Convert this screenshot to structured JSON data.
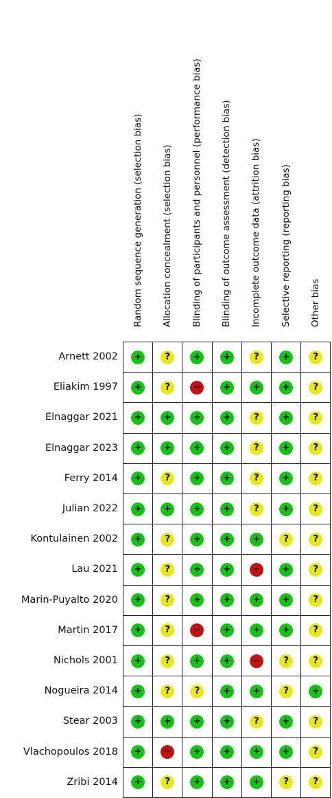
{
  "chart_data": {
    "type": "table",
    "title": "",
    "domains": [
      "Random sequence generation (selection bias)",
      "Allocation concealment (selection bias)",
      "Blinding of participants and personnel (performance bias)",
      "Blinding of outcome assessment (detection bias)",
      "Incomplete outcome data (attrition bias)",
      "Selective reporting (reporting bias)",
      "Other bias"
    ],
    "studies": [
      "Arnett 2002",
      "Eliakim 1997",
      "Elnaggar 2021",
      "Elnaggar 2023",
      "Ferry 2014",
      "Julian 2022",
      "Kontulainen 2002",
      "Lau 2021",
      "Marin-Puyalto 2020",
      "Martin 2017",
      "Nichols 2001",
      "Nogueira 2014",
      "Stear 2003",
      "Vlachopoulos 2018",
      "Zribi 2014"
    ],
    "symbols": {
      "low": "+",
      "unclear": "?",
      "high": "−"
    },
    "colors": {
      "low": "#15c315",
      "unclear": "#e8e818",
      "high": "#c41212"
    },
    "judgements": [
      [
        "low",
        "unclear",
        "low",
        "low",
        "unclear",
        "low",
        "unclear"
      ],
      [
        "low",
        "unclear",
        "high",
        "low",
        "low",
        "low",
        "unclear"
      ],
      [
        "low",
        "low",
        "low",
        "low",
        "unclear",
        "low",
        "unclear"
      ],
      [
        "low",
        "low",
        "low",
        "low",
        "unclear",
        "low",
        "unclear"
      ],
      [
        "low",
        "unclear",
        "low",
        "low",
        "unclear",
        "low",
        "unclear"
      ],
      [
        "low",
        "low",
        "low",
        "low",
        "unclear",
        "low",
        "unclear"
      ],
      [
        "low",
        "unclear",
        "low",
        "low",
        "low",
        "unclear",
        "unclear"
      ],
      [
        "low",
        "unclear",
        "low",
        "low",
        "high",
        "low",
        "unclear"
      ],
      [
        "low",
        "unclear",
        "low",
        "low",
        "low",
        "low",
        "unclear"
      ],
      [
        "low",
        "unclear",
        "high",
        "low",
        "low",
        "low",
        "unclear"
      ],
      [
        "low",
        "unclear",
        "low",
        "low",
        "high",
        "unclear",
        "unclear"
      ],
      [
        "low",
        "unclear",
        "unclear",
        "low",
        "low",
        "unclear",
        "low"
      ],
      [
        "low",
        "low",
        "low",
        "low",
        "unclear",
        "low",
        "unclear"
      ],
      [
        "low",
        "high",
        "low",
        "low",
        "low",
        "low",
        "unclear"
      ],
      [
        "low",
        "unclear",
        "low",
        "low",
        "low",
        "unclear",
        "unclear"
      ]
    ]
  }
}
